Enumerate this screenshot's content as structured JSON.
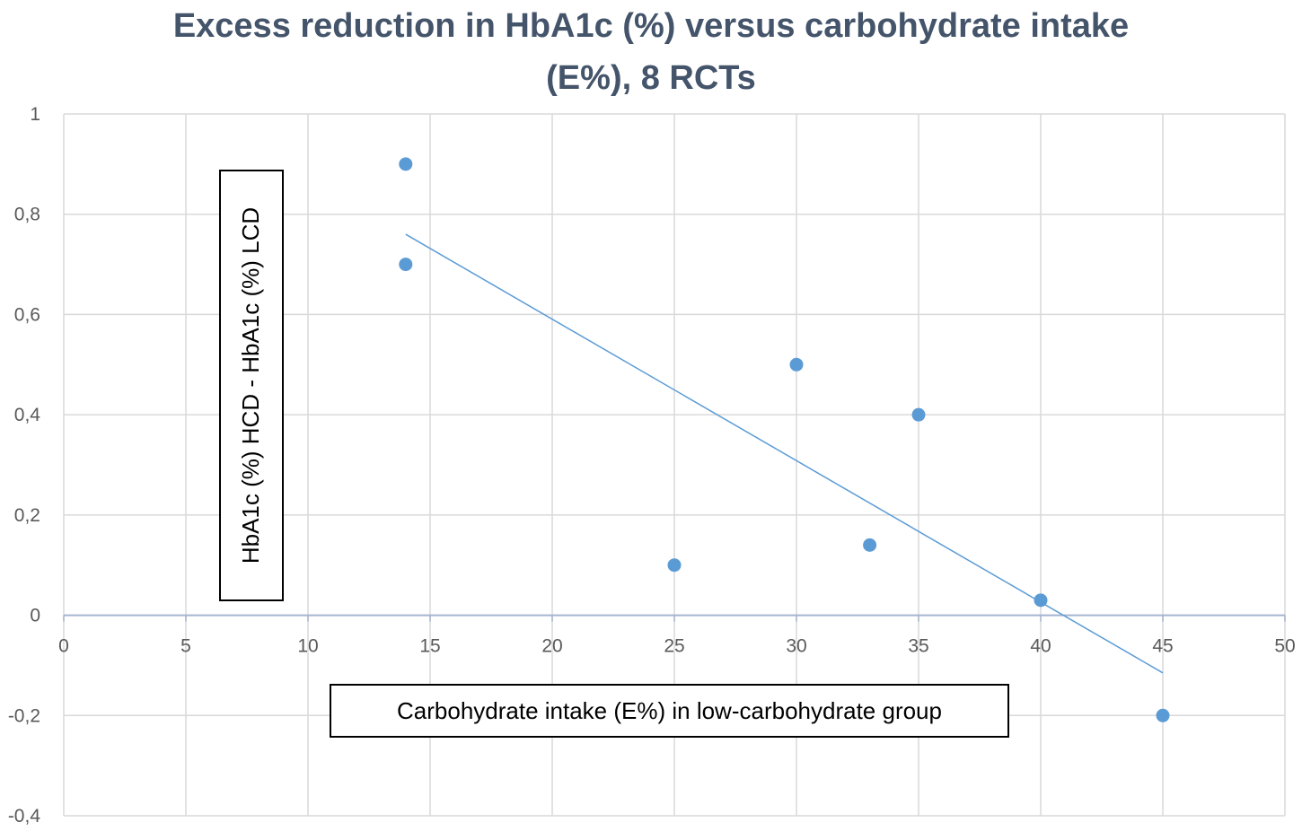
{
  "chart_data": {
    "type": "scatter",
    "title": "Excess reduction  in HbA1c (%) versus carbohydrate  intake (E%), 8 RCTs",
    "title_lines": [
      "Excess reduction  in HbA1c (%) versus carbohydrate  intake",
      "(E%), 8 RCTs"
    ],
    "xlabel": "Carbohydrate intake (E%) in low-carbohydrate group",
    "ylabel": "HbA1c (%) HCD - HbA1c (%) LCD",
    "xlim": [
      0,
      50
    ],
    "ylim": [
      -0.4,
      1
    ],
    "x_ticks": [
      "0",
      "5",
      "10",
      "15",
      "20",
      "25",
      "30",
      "35",
      "40",
      "45",
      "50"
    ],
    "y_ticks": [
      "1",
      "0,8",
      "0,6",
      "0,4",
      "0,2",
      "0",
      "-0,2",
      "-0,4"
    ],
    "grid": true,
    "points": [
      {
        "x": 14,
        "y": 0.9
      },
      {
        "x": 14,
        "y": 0.7
      },
      {
        "x": 25,
        "y": 0.1
      },
      {
        "x": 30,
        "y": 0.5
      },
      {
        "x": 33,
        "y": 0.14
      },
      {
        "x": 35,
        "y": 0.4
      },
      {
        "x": 40,
        "y": 0.03
      },
      {
        "x": 45,
        "y": -0.2
      }
    ],
    "trendline": {
      "type": "linear",
      "x": [
        14,
        45
      ],
      "y": [
        0.76,
        -0.115
      ]
    },
    "colors": {
      "points": "#5b9bd5",
      "trendline": "#5b9bd5",
      "grid": "#d9d9d9",
      "axis": "#a6b4d0",
      "title": "#44546a"
    }
  }
}
